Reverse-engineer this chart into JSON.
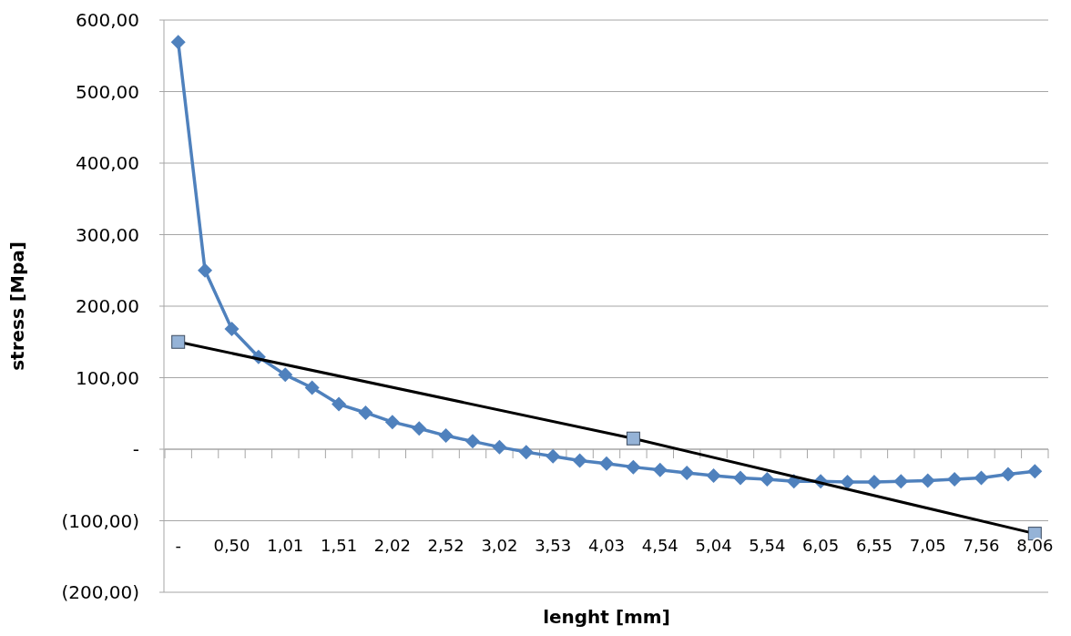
{
  "chart_data": {
    "type": "line",
    "xlabel": "lenght [mm]",
    "ylabel": "stress [Mpa]",
    "categories": [
      "-",
      null,
      "0,50",
      null,
      "1,01",
      null,
      "1,51",
      null,
      "2,02",
      null,
      "2,52",
      null,
      "3,02",
      null,
      "3,53",
      null,
      "4,03",
      null,
      "4,54",
      null,
      "5,04",
      null,
      "5,54",
      null,
      "6,05",
      null,
      "6,55",
      null,
      "7,05",
      null,
      "7,56",
      null,
      "8,06"
    ],
    "ylim": [
      -200,
      600
    ],
    "yticks": [
      {
        "value": -200,
        "label": "(200,00)"
      },
      {
        "value": -100,
        "label": "(100,00)"
      },
      {
        "value": 0,
        "label": "-"
      },
      {
        "value": 100,
        "label": "100,00"
      },
      {
        "value": 200,
        "label": "200,00"
      },
      {
        "value": 300,
        "label": "300,00"
      },
      {
        "value": 400,
        "label": "400,00"
      },
      {
        "value": 500,
        "label": "500,00"
      },
      {
        "value": 600,
        "label": "600,00"
      }
    ],
    "grid": "y",
    "series": [
      {
        "color": "#4f81bd",
        "marker": "diamond",
        "values": [
          569,
          250,
          168,
          129,
          104,
          86,
          63,
          51,
          38,
          29,
          19,
          11,
          3,
          -4,
          -10,
          -16,
          -20,
          -25,
          -29,
          -33,
          -37,
          -40,
          -42,
          -45,
          -45,
          -46,
          -46,
          -45,
          -44,
          -42,
          -40,
          -35,
          -31
        ]
      },
      {
        "color": "#000000",
        "marker": "square",
        "values": [
          150,
          null,
          null,
          null,
          null,
          null,
          null,
          null,
          null,
          null,
          null,
          null,
          null,
          null,
          null,
          null,
          null,
          15,
          null,
          null,
          null,
          null,
          null,
          null,
          null,
          null,
          null,
          null,
          null,
          null,
          null,
          null,
          -118
        ]
      }
    ]
  }
}
